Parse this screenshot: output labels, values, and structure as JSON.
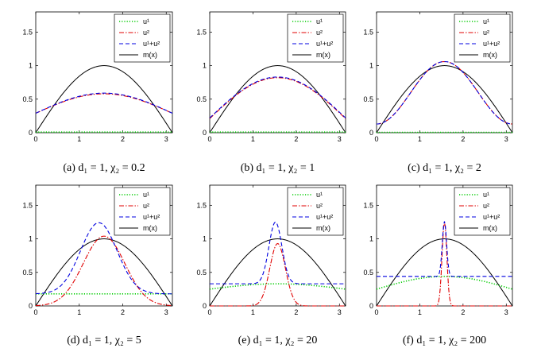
{
  "legend": [
    "u¹",
    "u²",
    "u¹+u²",
    "m(x)"
  ],
  "series_colors": {
    "u1": "#00cc00",
    "u2": "#e00000",
    "u1+u2": "#0000e0",
    "m": "#000000"
  },
  "chart_data": [
    {
      "type": "line",
      "caption": "(a) d₁ = 1, χ₂ = 0.2",
      "xlim": [
        0,
        3.1416
      ],
      "ylim": [
        0,
        1.8
      ],
      "xticks": [
        0,
        1,
        2,
        3
      ],
      "yticks": [
        0,
        0.5,
        1,
        1.5
      ],
      "ytick_labels": [
        "0",
        "0.5",
        "1",
        "1.5"
      ],
      "m": "sin",
      "u1": {
        "kind": "const",
        "value": 0.01
      },
      "u2": {
        "kind": "sinw",
        "a": 0.29,
        "b": 0.29,
        "p": 1
      },
      "sum": {
        "kind": "sinw",
        "a": 0.29,
        "b": 0.3,
        "p": 1
      }
    },
    {
      "type": "line",
      "caption": "(b) d₁ = 1, χ₂ = 1",
      "xlim": [
        0,
        3.1416
      ],
      "ylim": [
        0,
        1.8
      ],
      "xticks": [
        0,
        1,
        2,
        3
      ],
      "yticks": [
        0,
        0.5,
        1,
        1.5
      ],
      "ytick_labels": [
        "0",
        "0.5",
        "1",
        "1.5"
      ],
      "m": "sin",
      "u1": {
        "kind": "const",
        "value": 0.01
      },
      "u2": {
        "kind": "sinw",
        "a": 0.21,
        "b": 0.61,
        "p": 1
      },
      "sum": {
        "kind": "sinw",
        "a": 0.22,
        "b": 0.61,
        "p": 1
      }
    },
    {
      "type": "line",
      "caption": "(c) d₁ = 1, χ₂ = 2",
      "xlim": [
        0,
        3.1416
      ],
      "ylim": [
        0,
        1.8
      ],
      "xticks": [
        0,
        1,
        2,
        3
      ],
      "yticks": [
        0,
        0.5,
        1,
        1.5
      ],
      "ytick_labels": [
        "0",
        "0.5",
        "1",
        "1.5"
      ],
      "m": "sin",
      "u1": {
        "kind": "const",
        "value": 0.005
      },
      "u2": {
        "kind": "sinw",
        "a": 0.13,
        "b": 0.93,
        "p": 2
      },
      "sum": {
        "kind": "sinw",
        "a": 0.13,
        "b": 0.93,
        "p": 2
      }
    },
    {
      "type": "line",
      "caption": "(d) d₁ = 1, χ₂ = 5",
      "xlim": [
        0,
        3.1416
      ],
      "ylim": [
        0,
        1.8
      ],
      "xticks": [
        0,
        1,
        2,
        3
      ],
      "yticks": [
        0,
        0.5,
        1,
        1.5
      ],
      "ytick_labels": [
        "0",
        "0.5",
        "1",
        "1.5"
      ],
      "m": "sin",
      "u1": {
        "kind": "const",
        "value": 0.18
      },
      "u2": {
        "kind": "gauss",
        "a": 0.0,
        "b": 1.04,
        "mu": 1.57,
        "s": 0.48
      },
      "sum": {
        "kind": "gauss",
        "a": 0.18,
        "b": 1.06,
        "mu": 1.45,
        "s": 0.42
      }
    },
    {
      "type": "line",
      "caption": "(e) d₁ = 1, χ₂ = 20",
      "xlim": [
        0,
        3.1416
      ],
      "ylim": [
        0,
        1.8
      ],
      "xticks": [
        0,
        1,
        2,
        3
      ],
      "yticks": [
        0,
        0.5,
        1,
        1.5
      ],
      "ytick_labels": [
        "0",
        "0.5",
        "1",
        "1.5"
      ],
      "m": "sin",
      "u1": {
        "kind": "sinw",
        "a": 0.25,
        "b": 0.08,
        "p": 1
      },
      "u2": {
        "kind": "gauss",
        "a": 0.0,
        "b": 0.93,
        "mu": 1.57,
        "s": 0.18
      },
      "sum": {
        "kind": "gauss",
        "a": 0.33,
        "b": 0.92,
        "mu": 1.52,
        "s": 0.15
      }
    },
    {
      "type": "line",
      "caption": "(f) d₁ = 1, χ₂ = 200",
      "xlim": [
        0,
        3.1416
      ],
      "ylim": [
        0,
        1.8
      ],
      "xticks": [
        0,
        1,
        2,
        3
      ],
      "yticks": [
        0,
        0.5,
        1,
        1.5
      ],
      "ytick_labels": [
        "0",
        "0.5",
        "1",
        "1.5"
      ],
      "m": "sin",
      "u1": {
        "kind": "sinw",
        "a": 0.25,
        "b": 0.19,
        "p": 1
      },
      "u2": {
        "kind": "gauss",
        "a": 0.0,
        "b": 1.25,
        "mu": 1.57,
        "s": 0.055
      },
      "sum": {
        "kind": "gauss",
        "a": 0.44,
        "b": 0.82,
        "mu": 1.57,
        "s": 0.05
      }
    }
  ]
}
